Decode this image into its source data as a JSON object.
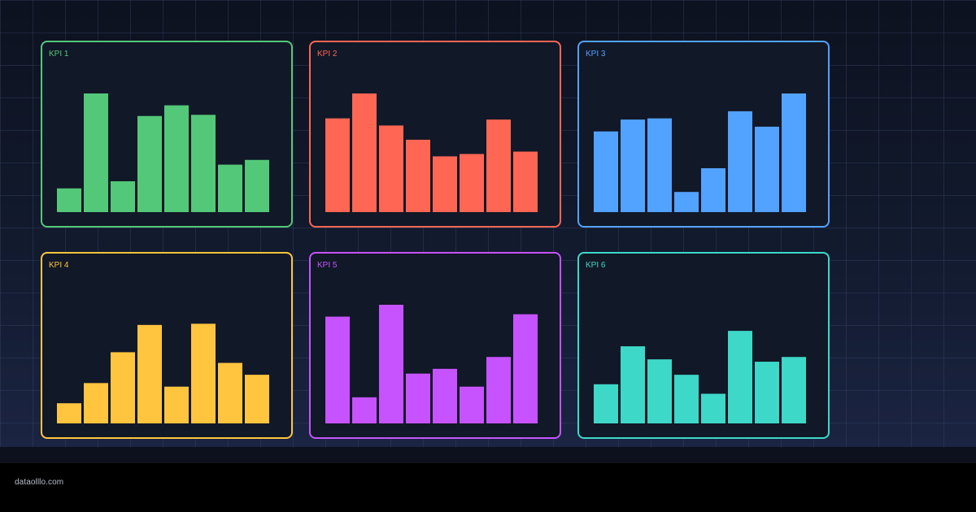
{
  "footer": {
    "brand": "dataolllo.com"
  },
  "chart_data": [
    {
      "type": "bar",
      "title": "KPI 1",
      "color": "#53c879",
      "values": [
        20,
        100,
        26,
        81,
        90,
        82,
        40,
        44
      ],
      "ylim": [
        0,
        100
      ]
    },
    {
      "type": "bar",
      "title": "KPI 2",
      "color": "#ff6654",
      "values": [
        79,
        100,
        73,
        61,
        47,
        49,
        78,
        51
      ],
      "ylim": [
        0,
        100
      ]
    },
    {
      "type": "bar",
      "title": "KPI 3",
      "color": "#52a2ff",
      "values": [
        68,
        78,
        79,
        17,
        37,
        85,
        72,
        100
      ],
      "ylim": [
        0,
        100
      ]
    },
    {
      "type": "bar",
      "title": "KPI 4",
      "color": "#ffc53e",
      "values": [
        17,
        34,
        60,
        83,
        31,
        84,
        51,
        41
      ],
      "ylim": [
        0,
        100
      ]
    },
    {
      "type": "bar",
      "title": "KPI 5",
      "color": "#c653ff",
      "values": [
        90,
        22,
        100,
        42,
        46,
        31,
        56,
        92
      ],
      "ylim": [
        0,
        100
      ]
    },
    {
      "type": "bar",
      "title": "KPI 6",
      "color": "#3dd8c8",
      "values": [
        33,
        65,
        54,
        41,
        25,
        78,
        52,
        56
      ],
      "ylim": [
        0,
        100
      ]
    }
  ]
}
